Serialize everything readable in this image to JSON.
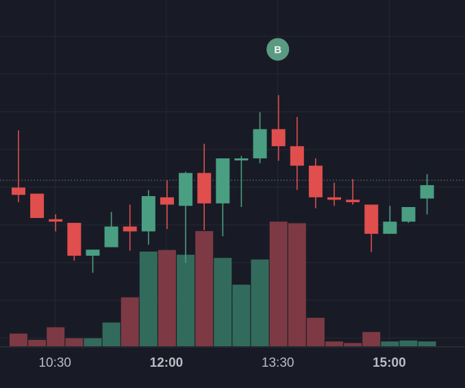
{
  "chart_data": {
    "type": "candlestick",
    "title": "",
    "xlabel": "",
    "ylabel": "",
    "x_tick_labels": [
      {
        "label": "10:30",
        "bold": false,
        "slot": 2
      },
      {
        "label": "12:00",
        "bold": true,
        "slot": 8
      },
      {
        "label": "13:30",
        "bold": false,
        "slot": 14
      },
      {
        "label": "15:00",
        "bold": true,
        "slot": 20
      }
    ],
    "ylim": [
      0,
      100
    ],
    "current_price": 55.5,
    "candles": [
      {
        "slot": 0,
        "open": 52.5,
        "high": 76.0,
        "low": 46.5,
        "close": 49.5,
        "volume": 4
      },
      {
        "slot": 1,
        "open": 50.0,
        "high": 50.0,
        "low": 40.0,
        "close": 40.0,
        "volume": 2
      },
      {
        "slot": 2,
        "open": 39.5,
        "high": 41.5,
        "low": 34.5,
        "close": 38.5,
        "volume": 6
      },
      {
        "slot": 3,
        "open": 38.0,
        "high": 38.0,
        "low": 22.5,
        "close": 24.5,
        "volume": 2.5
      },
      {
        "slot": 4,
        "open": 24.5,
        "high": 27.0,
        "low": 17.5,
        "close": 27.0,
        "volume": 2.5
      },
      {
        "slot": 5,
        "open": 28.0,
        "high": 42.5,
        "low": 28.0,
        "close": 36.5,
        "volume": 7.5
      },
      {
        "slot": 6,
        "open": 36.5,
        "high": 45.5,
        "low": 26.5,
        "close": 34.5,
        "volume": 15.5
      },
      {
        "slot": 7,
        "open": 34.5,
        "high": 51.5,
        "low": 29.0,
        "close": 49.0,
        "volume": 30
      },
      {
        "slot": 8,
        "open": 48.5,
        "high": 55.5,
        "low": 35.5,
        "close": 45.5,
        "volume": 30.5
      },
      {
        "slot": 9,
        "open": 45.0,
        "high": 59.0,
        "low": 21.5,
        "close": 58.5,
        "volume": 29
      },
      {
        "slot": 10,
        "open": 58.5,
        "high": 70.5,
        "low": 35.0,
        "close": 46.0,
        "volume": 36.5
      },
      {
        "slot": 11,
        "open": 46.0,
        "high": 64.5,
        "low": 32.5,
        "close": 64.5,
        "volume": 28
      },
      {
        "slot": 12,
        "open": 64.0,
        "high": 65.5,
        "low": 44.5,
        "close": 64.5,
        "volume": 19.5
      },
      {
        "slot": 13,
        "open": 64.5,
        "high": 83.5,
        "low": 62.5,
        "close": 76.5,
        "volume": 27.5
      },
      {
        "slot": 14,
        "open": 76.5,
        "high": 90.5,
        "low": 63.5,
        "close": 69.5,
        "volume": 39.5
      },
      {
        "slot": 15,
        "open": 69.5,
        "high": 81.5,
        "low": 51.5,
        "close": 61.5,
        "volume": 39
      },
      {
        "slot": 16,
        "open": 61.5,
        "high": 64.5,
        "low": 44.0,
        "close": 48.5,
        "volume": 9
      },
      {
        "slot": 17,
        "open": 48.5,
        "high": 54.5,
        "low": 45.0,
        "close": 47.5,
        "volume": 1.5
      },
      {
        "slot": 18,
        "open": 47.5,
        "high": 56.0,
        "low": 45.5,
        "close": 46.5,
        "volume": 1
      },
      {
        "slot": 19,
        "open": 45.5,
        "high": 45.5,
        "low": 26.0,
        "close": 33.5,
        "volume": 4.5
      },
      {
        "slot": 20,
        "open": 33.5,
        "high": 45.0,
        "low": 33.5,
        "close": 38.5,
        "volume": 1.5
      },
      {
        "slot": 21,
        "open": 38.5,
        "high": 44.5,
        "low": 38.0,
        "close": 44.5,
        "volume": 1.8
      },
      {
        "slot": 22,
        "open": 48.0,
        "high": 58.0,
        "low": 41.5,
        "close": 53.5,
        "volume": 1.5
      }
    ],
    "markers": [
      {
        "slot": 14,
        "label": "B",
        "color": "#5a9a81"
      }
    ],
    "colors": {
      "background": "#181b25",
      "grid": "#262a35",
      "up": "#4a9e82",
      "down": "#e04e4e",
      "volume_up": "#326b5c",
      "volume_down": "#7d3a44",
      "price_line": "#6f8a86",
      "axis_text": "#b9bcc4",
      "axis_line": "#2c303b"
    },
    "grid": true
  }
}
